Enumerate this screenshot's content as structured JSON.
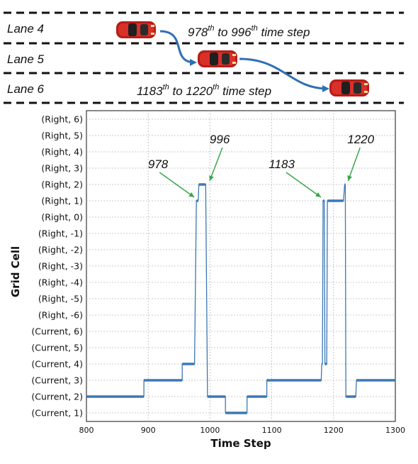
{
  "scene": {
    "lanes": [
      "Lane 4",
      "Lane 5",
      "Lane 6"
    ],
    "note_1": {
      "start": "978",
      "start_sup": "th",
      "mid": " to ",
      "end": "996",
      "end_sup": "th",
      "tail": " time step"
    },
    "note_2": {
      "start": "1183",
      "start_sup": "th",
      "mid": " to ",
      "end": "1220",
      "end_sup": "th",
      "tail": " time step"
    },
    "colors": {
      "car": "#c0201c",
      "arrow": "#2f6fb6",
      "lane_line": "#111111"
    }
  },
  "chart_data": {
    "type": "line",
    "xlabel": "Time Step",
    "ylabel": "Grid Cell",
    "xlim": [
      800,
      1300
    ],
    "x_ticks": [
      "800",
      "900",
      "1000",
      "1100",
      "1200",
      "1300"
    ],
    "y_categories": [
      "(Current, 1)",
      "(Current, 2)",
      "(Current, 3)",
      "(Current, 4)",
      "(Current, 5)",
      "(Current, 6)",
      "(Right, -6)",
      "(Right, -5)",
      "(Right, -4)",
      "(Right, -3)",
      "(Right, -2)",
      "(Right, -1)",
      "(Right, 0)",
      "(Right, 1)",
      "(Right, 2)",
      "(Right, 3)",
      "(Right, 4)",
      "(Right, 5)",
      "(Right, 6)"
    ],
    "grid": true,
    "series": [
      {
        "color": "#3c78b4",
        "points": [
          [
            800,
            1
          ],
          [
            893,
            1
          ],
          [
            893,
            2
          ],
          [
            955,
            2
          ],
          [
            955,
            3
          ],
          [
            975,
            3
          ],
          [
            978,
            13
          ],
          [
            981,
            13
          ],
          [
            982,
            14
          ],
          [
            993,
            14
          ],
          [
            996,
            1
          ],
          [
            1025,
            1
          ],
          [
            1025,
            0
          ],
          [
            1060,
            0
          ],
          [
            1060,
            1
          ],
          [
            1092,
            1
          ],
          [
            1092,
            2
          ],
          [
            1180,
            2
          ],
          [
            1181,
            3
          ],
          [
            1182,
            3
          ],
          [
            1183,
            13
          ],
          [
            1185,
            13
          ],
          [
            1186,
            3
          ],
          [
            1189,
            3
          ],
          [
            1190,
            13
          ],
          [
            1216,
            13
          ],
          [
            1218,
            14
          ],
          [
            1219,
            14
          ],
          [
            1220,
            1
          ],
          [
            1236,
            1
          ],
          [
            1237,
            2
          ],
          [
            1300,
            2
          ]
        ]
      }
    ],
    "annotations": [
      {
        "text": "978",
        "x": 978,
        "y": 13
      },
      {
        "text": "996",
        "x": 996,
        "y": 14
      },
      {
        "text": "1183",
        "x": 1183,
        "y": 13
      },
      {
        "text": "1220",
        "x": 1220,
        "y": 14
      }
    ]
  }
}
